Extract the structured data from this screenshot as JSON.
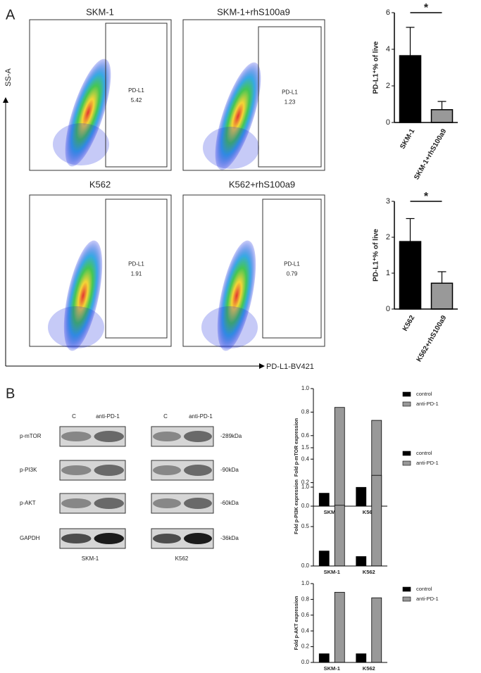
{
  "panels": [
    "A",
    "B"
  ],
  "flow": {
    "ylabel": "SS-A",
    "xlabel": "PD-L1-BV421",
    "plots": [
      {
        "title": "SKM-1",
        "gate": "PD-L1",
        "value": 5.42
      },
      {
        "title": "SKM-1+rhS100a9",
        "gate": "PD-L1",
        "value": 1.23
      },
      {
        "title": "K562",
        "gate": "PD-L1",
        "value": 1.91
      },
      {
        "title": "K562+rhS100a9",
        "gate": "PD-L1",
        "value": 0.79
      }
    ]
  },
  "blot": {
    "lanes": [
      "C",
      "anti-PD-1",
      "C",
      "anti-PD-1"
    ],
    "rows": [
      {
        "label": "p-mTOR",
        "size": "-289kDa"
      },
      {
        "label": "p-PI3K",
        "size": "-90kDa"
      },
      {
        "label": "p-AKT",
        "size": "-60kDa"
      },
      {
        "label": "GAPDH",
        "size": "-36kDa"
      }
    ],
    "cells": [
      "SKM-1",
      "K562"
    ]
  },
  "chart_data": [
    {
      "type": "bar",
      "ylabel": "PD-L1⁺% of live",
      "categories": [
        "SKM-1",
        "SKM-1+rhS100a9"
      ],
      "values": [
        3.65,
        0.7
      ],
      "errors": [
        1.55,
        0.45
      ],
      "colors": [
        "#000000",
        "#999999"
      ],
      "ylim": [
        0,
        6
      ],
      "yticks": [
        0,
        2,
        4,
        6
      ],
      "annotation": "*"
    },
    {
      "type": "bar",
      "ylabel": "PD-L1⁺% of live",
      "categories": [
        "K562",
        "K562+rhS100a9"
      ],
      "values": [
        1.88,
        0.72
      ],
      "errors": [
        0.64,
        0.32
      ],
      "colors": [
        "#000000",
        "#999999"
      ],
      "ylim": [
        0,
        3
      ],
      "yticks": [
        0,
        1,
        2,
        3
      ],
      "annotation": "*"
    },
    {
      "type": "bar",
      "ylabel": "Fold p-mTOR expression",
      "categories": [
        "SKM-1",
        "K562"
      ],
      "series": [
        {
          "name": "control",
          "color": "#000000",
          "values": [
            0.11,
            0.16
          ]
        },
        {
          "name": "anti-PD-1",
          "color": "#999999",
          "values": [
            0.84,
            0.73
          ]
        }
      ],
      "ylim": [
        0,
        1
      ],
      "yticks": [
        {
          "value": 0,
          "label": "0.0"
        },
        0.2,
        0.4,
        0.6,
        0.8,
        {
          "value": 1,
          "label": "1.0"
        }
      ]
    },
    {
      "type": "bar",
      "ylabel": "Fold p-PI3K expression",
      "categories": [
        "SKM-1",
        "K562"
      ],
      "series": [
        {
          "name": "control",
          "color": "#000000",
          "values": [
            0.19,
            0.12
          ]
        },
        {
          "name": "anti-PD-1",
          "color": "#999999",
          "values": [
            0.77,
            1.15
          ]
        }
      ],
      "ylim": [
        0,
        1.5
      ],
      "yticks": [
        {
          "value": 0,
          "label": "0.0"
        },
        0.5,
        {
          "value": 1,
          "label": "1.0"
        },
        1.5
      ]
    },
    {
      "type": "bar",
      "ylabel": "Fold p-AKT expression",
      "categories": [
        "SKM-1",
        "K562"
      ],
      "series": [
        {
          "name": "control",
          "color": "#000000",
          "values": [
            0.11,
            0.11
          ]
        },
        {
          "name": "anti-PD-1",
          "color": "#999999",
          "values": [
            0.89,
            0.82
          ]
        }
      ],
      "ylim": [
        0,
        1
      ],
      "yticks": [
        {
          "value": 0,
          "label": "0.0"
        },
        0.2,
        0.4,
        0.6,
        0.8,
        {
          "value": 1,
          "label": "1.0"
        }
      ]
    }
  ]
}
